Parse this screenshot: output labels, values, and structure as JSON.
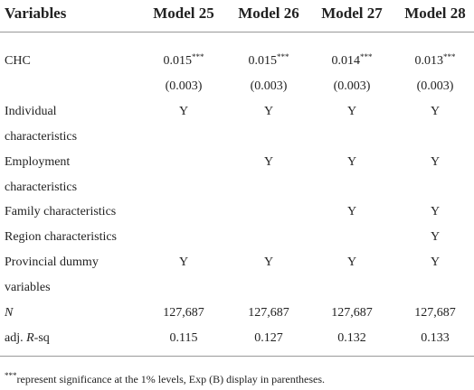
{
  "header": {
    "label": "Variables",
    "models": [
      "Model 25",
      "Model 26",
      "Model 27",
      "Model 28"
    ]
  },
  "lines": [
    {
      "label": "CHC",
      "cells": [
        "0.015",
        "0.015",
        "0.014",
        "0.013"
      ],
      "sup": [
        "***",
        "***",
        "***",
        "***"
      ]
    },
    {
      "label": null,
      "cells": [
        "(0.003)",
        "(0.003)",
        "(0.003)",
        "(0.003)"
      ]
    },
    {
      "label": "Individual",
      "cells": [
        "Y",
        "Y",
        "Y",
        "Y"
      ]
    },
    {
      "label": "characteristics"
    },
    {
      "label": "Employment",
      "cells": [
        null,
        "Y",
        "Y",
        "Y"
      ]
    },
    {
      "label": "characteristics"
    },
    {
      "label": "Family characteristics",
      "cells": [
        null,
        null,
        "Y",
        "Y"
      ]
    },
    {
      "label": "Region characteristics",
      "cells": [
        null,
        null,
        null,
        "Y"
      ]
    },
    {
      "label": "Provincial dummy",
      "cells": [
        "Y",
        "Y",
        "Y",
        "Y"
      ]
    },
    {
      "label": "variables"
    },
    {
      "label": "N",
      "italic": true,
      "cells": [
        "127,687",
        "127,687",
        "127,687",
        "127,687"
      ]
    },
    {
      "label": [
        "adj. ",
        "R",
        "-sq"
      ],
      "cells": [
        "0.115",
        "0.127",
        "0.132",
        "0.133"
      ]
    }
  ],
  "footnote": {
    "marker": "***",
    "text": "represent significance at the 1% levels, Exp (B) display in parentheses."
  }
}
